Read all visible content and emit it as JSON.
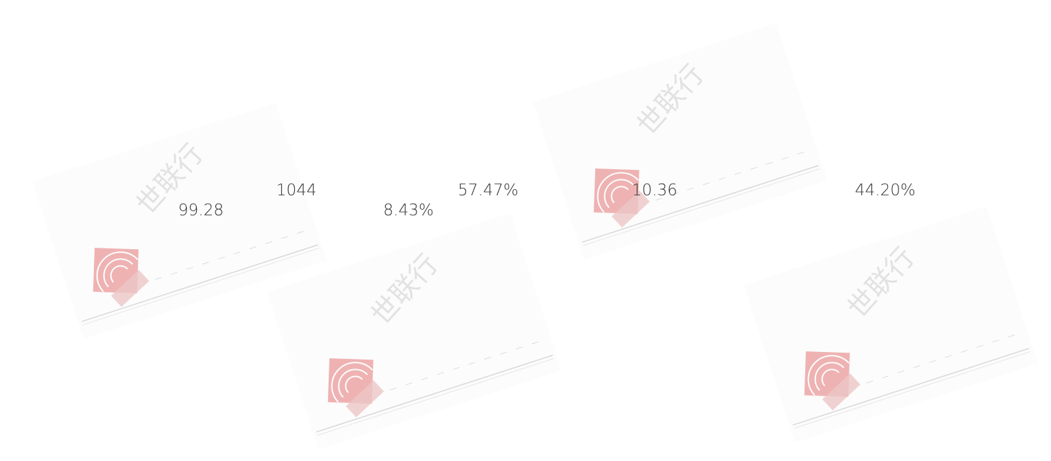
{
  "watermark": "世联行",
  "metrics": {
    "row1": [
      "1044",
      "57.47%",
      "10.36",
      "44.20%"
    ],
    "row2": [
      "99.28",
      "8.43%"
    ]
  }
}
